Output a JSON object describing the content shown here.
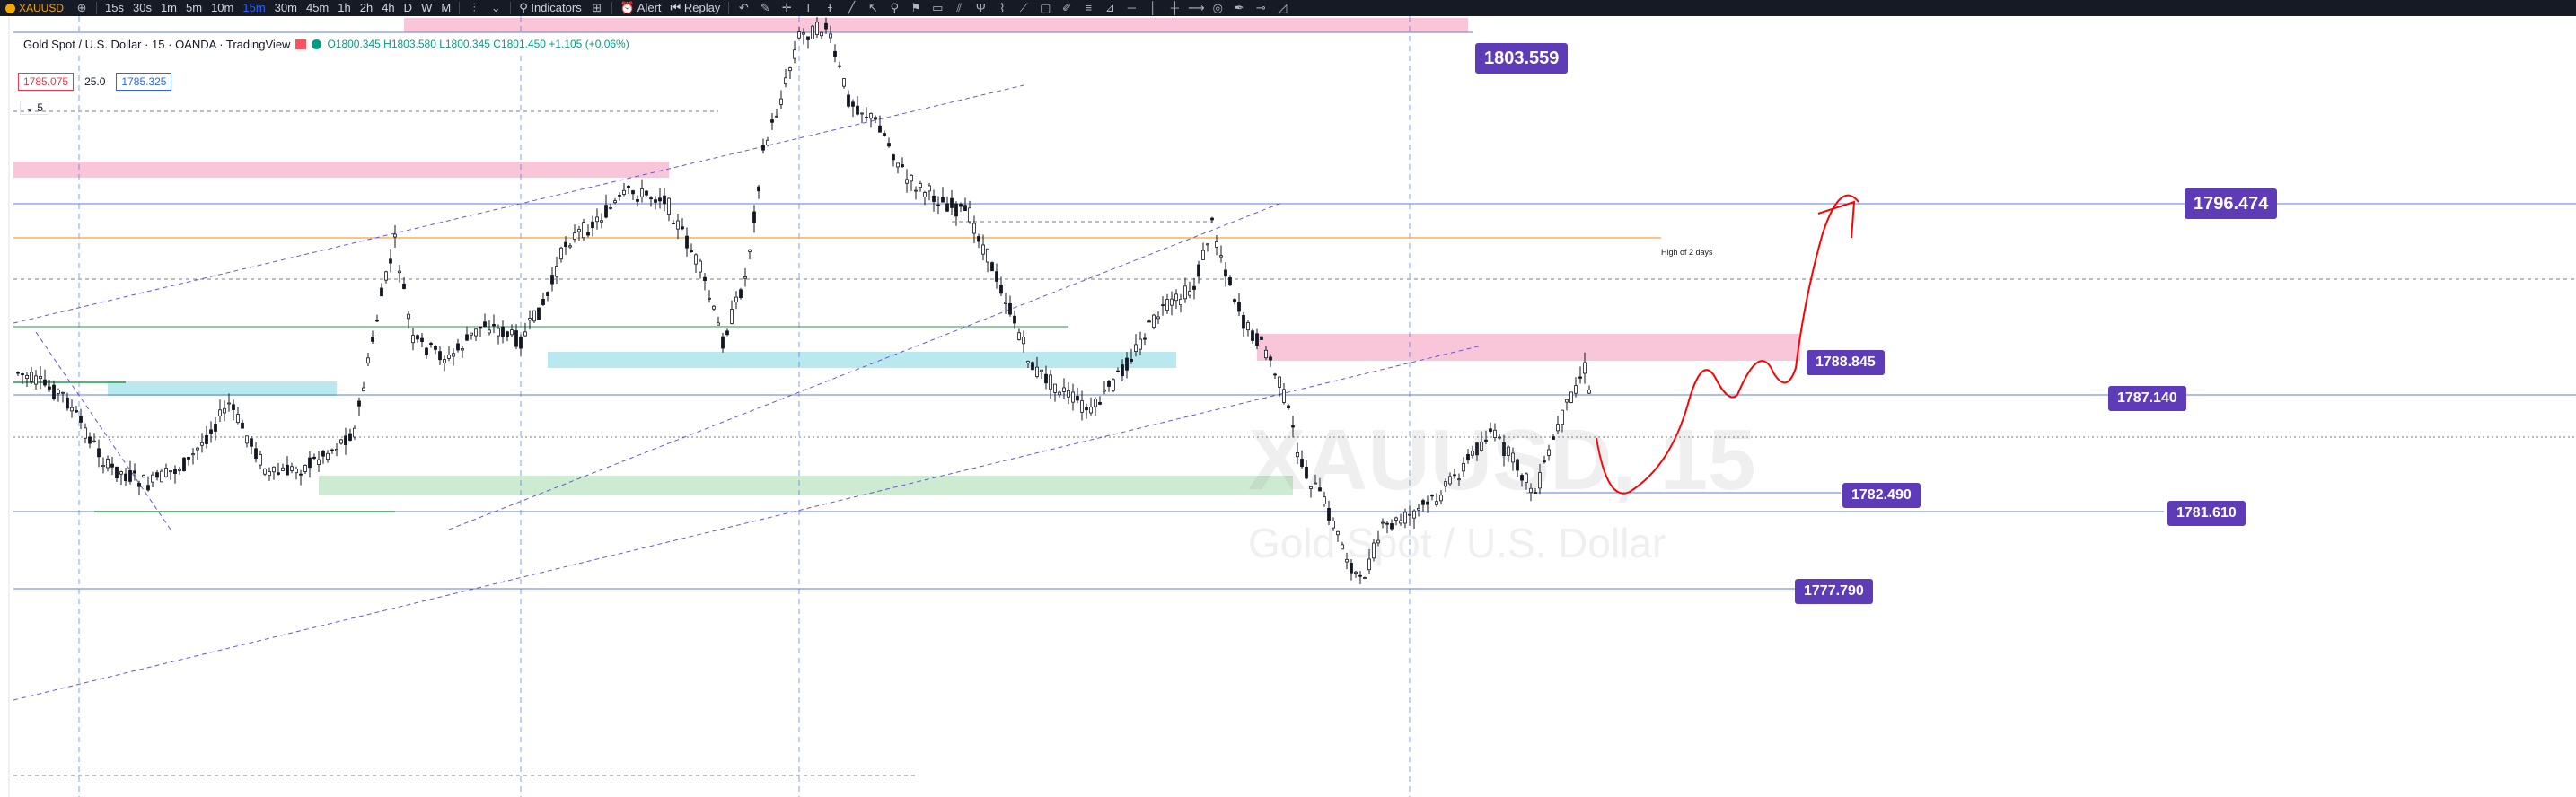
{
  "toolbar": {
    "symbol": "XAUUSD",
    "intervals": [
      "15s",
      "30s",
      "1m",
      "5m",
      "10m",
      "15m",
      "30m",
      "45m",
      "1h",
      "2h",
      "4h",
      "D",
      "W",
      "M"
    ],
    "active_interval": "15m",
    "indicators_label": "Indicators",
    "alert_label": "Alert",
    "replay_label": "Replay"
  },
  "legend": {
    "title": "Gold Spot / U.S. Dollar · 15 · OANDA · TradingView",
    "ohlc": "O1800.345 H1803.580 L1800.345 C1801.450 +1.105 (+0.06%)"
  },
  "order_boxes": {
    "sell": "1785.075",
    "qty": "25.0",
    "buy": "1785.325"
  },
  "collapse_label": "5",
  "price_tags": [
    {
      "label": "1803.559",
      "size": "big"
    },
    {
      "label": "1796.474",
      "size": "big"
    },
    {
      "label": "1788.845",
      "size": "small"
    },
    {
      "label": "1787.140",
      "size": "small"
    },
    {
      "label": "1782.490",
      "size": "small"
    },
    {
      "label": "1781.610",
      "size": "small"
    },
    {
      "label": "1777.790",
      "size": "small"
    }
  ],
  "annotation": "High of 2 days",
  "watermark": {
    "symbol": "XAUUSD, 15",
    "name": "Gold Spot / U.S. Dollar"
  },
  "colors": {
    "topbar_bg": "#161a25",
    "tag_bg": "#5e3cb8",
    "bull": "#ffffff",
    "bear": "#131722",
    "zone_pink": "#f8c6d8",
    "zone_cyan": "#b9e8ef",
    "zone_green": "#cdebd0",
    "level_line": "#5b7be0",
    "orange_line": "#f7a23b",
    "green_line": "#1f9e45",
    "drawing_red": "#ff0000"
  },
  "tool_icons": [
    "undo-icon",
    "brush-icon",
    "crosshair-icon",
    "text-icon",
    "anchor-text-icon",
    "trendline-icon",
    "arrow-icon",
    "pin-icon",
    "flag-icon",
    "callout-icon",
    "parallel-channel-icon",
    "pitchfork-icon",
    "path-icon",
    "ray-icon",
    "rectangle-icon",
    "brush2-icon",
    "fib-icon",
    "gann-icon",
    "horizontal-line-icon",
    "vertical-line-icon",
    "cross-line-icon",
    "horizontal-ray-icon",
    "circle-icon",
    "pen-icon",
    "measure-icon",
    "triangle-icon"
  ]
}
